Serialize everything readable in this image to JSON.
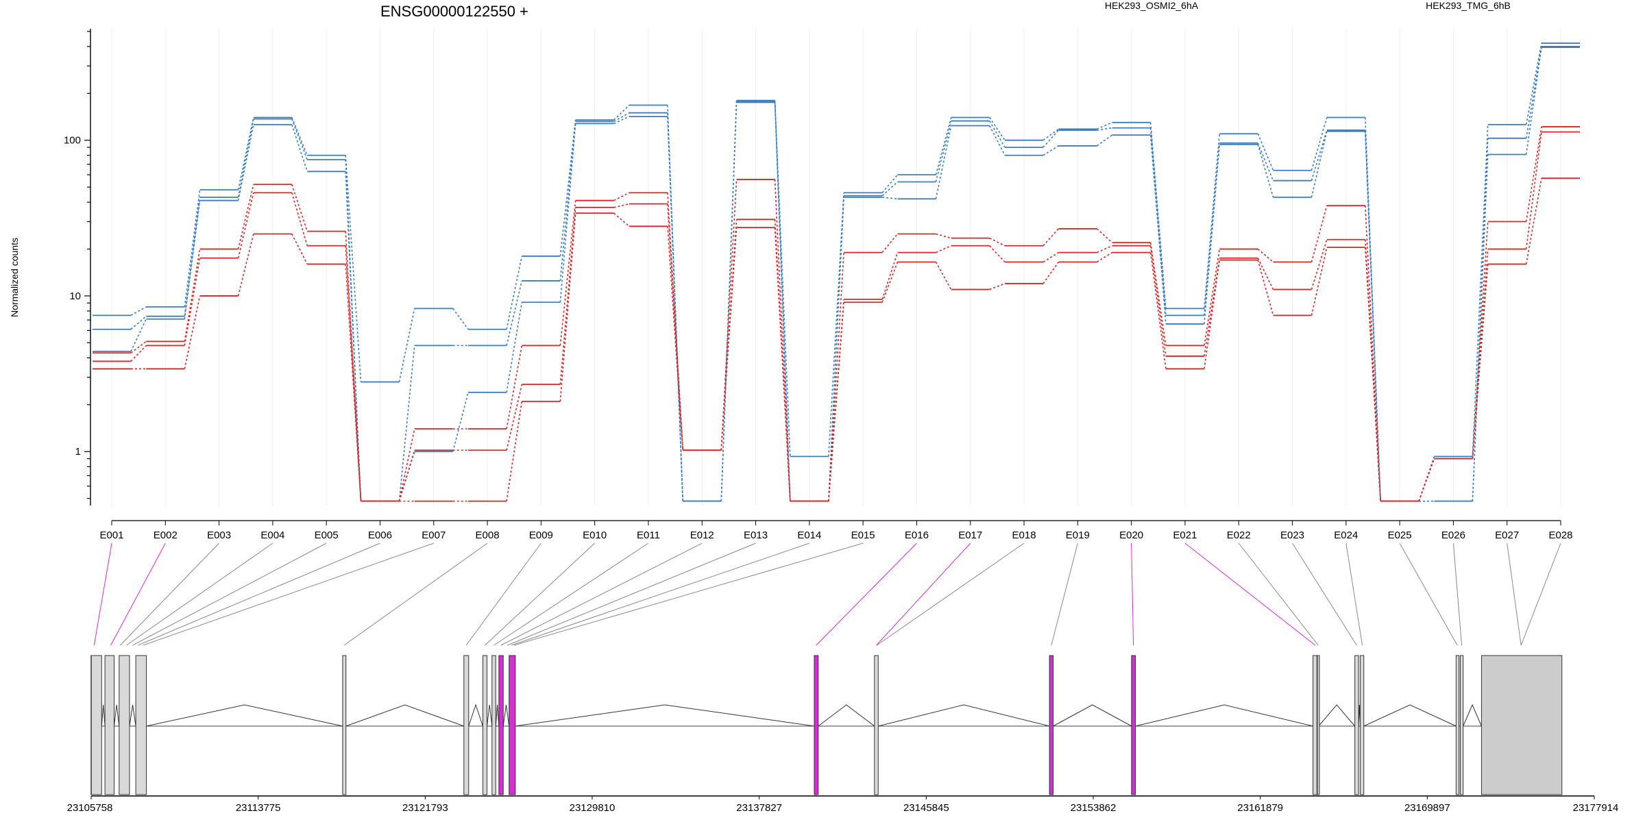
{
  "chart_data": {
    "type": "line",
    "title": "ENSG00000122550 +",
    "ylabel": "Normalized counts",
    "yscale": "log",
    "ylim": [
      0.45,
      520
    ],
    "ytick_labels": [
      1,
      10,
      100
    ],
    "grid": "vertical, light",
    "legend_position": "top",
    "exons": [
      "E001",
      "E002",
      "E003",
      "E004",
      "E005",
      "E006",
      "E007",
      "E008",
      "E009",
      "E010",
      "E011",
      "E012",
      "E013",
      "E014",
      "E015",
      "E016",
      "E017",
      "E018",
      "E019",
      "E020",
      "E021",
      "E022",
      "E023",
      "E024",
      "E025",
      "E026",
      "E027",
      "E028"
    ],
    "groups": [
      {
        "name": "HEK293_OSMI2_6hA",
        "color": "#d62728"
      },
      {
        "name": "HEK293_TMG_6hB",
        "color": "#3a7dc0"
      }
    ],
    "series": [
      {
        "group": "HEK293_TMG_6hB",
        "values": [
          7.5,
          8.5,
          48,
          140,
          80,
          2.8,
          8.3,
          6.1,
          18,
          135,
          168,
          0.48,
          180,
          0.93,
          46,
          60,
          140,
          100,
          118,
          130,
          8.3,
          110,
          64,
          140,
          0.48,
          0.93,
          126,
          420
        ]
      },
      {
        "group": "HEK293_TMG_6hB",
        "values": [
          6.1,
          7.4,
          43,
          137,
          75,
          0.48,
          4.8,
          4.8,
          12.5,
          132,
          150,
          0.48,
          178,
          0.48,
          44,
          54,
          133,
          90,
          116,
          120,
          7.5,
          96,
          55,
          116,
          0.48,
          0.48,
          103,
          400
        ]
      },
      {
        "group": "HEK293_TMG_6hB",
        "values": [
          4.4,
          7.1,
          41,
          126,
          63,
          0.48,
          1.0,
          2.4,
          9.1,
          128,
          142,
          0.48,
          175,
          0.48,
          43,
          42,
          124,
          80,
          92,
          108,
          6.6,
          94,
          43,
          114,
          0.48,
          0.48,
          81,
          395
        ]
      },
      {
        "group": "HEK293_OSMI2_6hA",
        "values": [
          4.3,
          5.1,
          20,
          52,
          26,
          0.48,
          1.4,
          1.4,
          4.8,
          41,
          46,
          1.02,
          56,
          0.48,
          19,
          25,
          23.5,
          21,
          27,
          22,
          4.8,
          20,
          16.5,
          38,
          0.48,
          0.9,
          30,
          122
        ]
      },
      {
        "group": "HEK293_OSMI2_6hA",
        "values": [
          3.8,
          4.8,
          17.5,
          46,
          21,
          0.48,
          1.02,
          1.02,
          2.7,
          37,
          39,
          1.02,
          31,
          0.48,
          9.5,
          19,
          21,
          16.5,
          19,
          21,
          4.1,
          17.5,
          11,
          23,
          0.48,
          0.9,
          20,
          113
        ]
      },
      {
        "group": "HEK293_OSMI2_6hA",
        "values": [
          3.4,
          3.4,
          10,
          25,
          16,
          0.48,
          0.48,
          0.48,
          2.1,
          34,
          28,
          1.02,
          27.5,
          0.48,
          9.1,
          16.5,
          11,
          12,
          16.5,
          19,
          3.4,
          17,
          7.5,
          20.5,
          0.48,
          0.9,
          16,
          57
        ]
      }
    ],
    "gene_model": {
      "coordinate_ticks": [
        "23105758",
        "23113775",
        "23121793",
        "23129810",
        "23137827",
        "23145845",
        "23153862",
        "23161879",
        "23169897",
        "23177914"
      ],
      "highlight_color": "#d42ed4",
      "highlighted_exons": [
        "E001",
        "E002",
        "E016",
        "E017",
        "E020",
        "E021"
      ]
    }
  }
}
